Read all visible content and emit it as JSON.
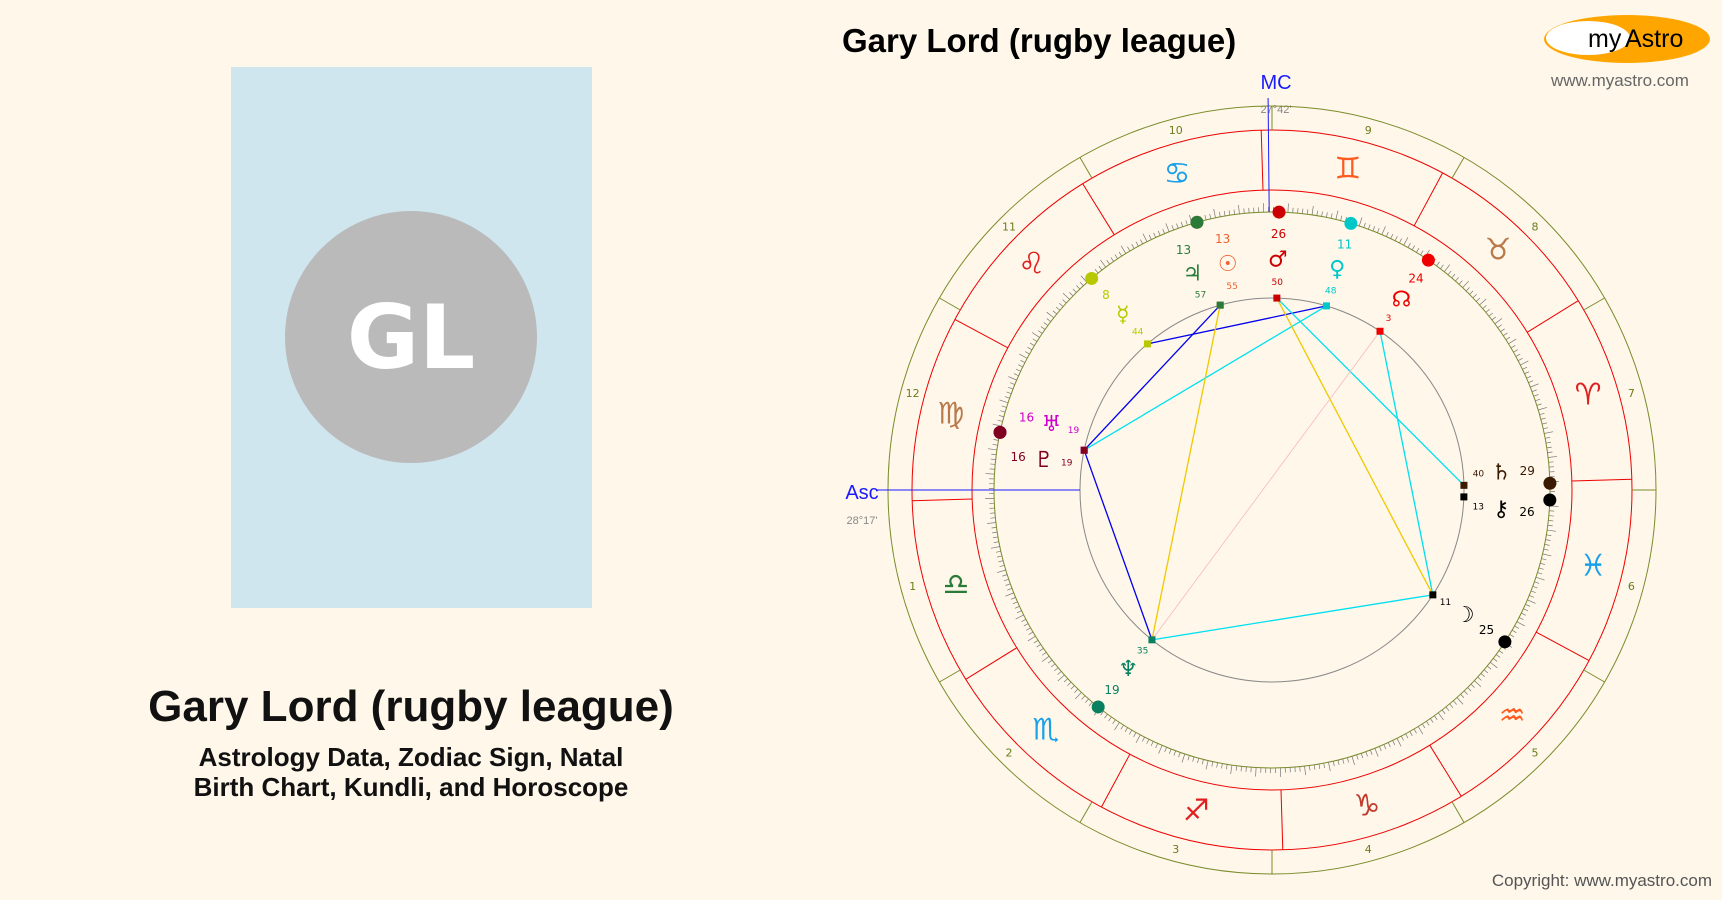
{
  "person": {
    "name": "Gary Lord (rugby league)",
    "initials": "GL",
    "subtitle_line1": "Astrology Data, Zodiac Sign, Natal",
    "subtitle_line2": "Birth Chart, Kundli, and Horoscope"
  },
  "header": {
    "title": "Gary Lord (rugby league)",
    "logo_my": "my",
    "logo_astro": "Astro",
    "url": "www.myastro.com"
  },
  "footer": {
    "copyright": "Copyright: www.myastro.com"
  },
  "chart": {
    "mc_label": "MC",
    "mc_degree": "27°42'",
    "asc_label": "Asc",
    "asc_degree": "28°17'",
    "asc_longitude": 178.28,
    "house_numbers": [
      "1",
      "2",
      "3",
      "4",
      "5",
      "6",
      "7",
      "8",
      "9",
      "10",
      "11",
      "12"
    ],
    "signs": [
      {
        "glyph": "♈",
        "color": "#e02020"
      },
      {
        "glyph": "♉",
        "color": "#b87a4b"
      },
      {
        "glyph": "♊",
        "color": "#ff5a1f"
      },
      {
        "glyph": "♋",
        "color": "#1aa0e8"
      },
      {
        "glyph": "♌",
        "color": "#e02020"
      },
      {
        "glyph": "♍",
        "color": "#b87a4b"
      },
      {
        "glyph": "♎",
        "color": "#2a7a3a"
      },
      {
        "glyph": "♏",
        "color": "#1aa0e8"
      },
      {
        "glyph": "♐",
        "color": "#e02020"
      },
      {
        "glyph": "♑",
        "color": "#c0392b"
      },
      {
        "glyph": "♒",
        "color": "#ff5a1f"
      },
      {
        "glyph": "♓",
        "color": "#1aa0e8"
      }
    ],
    "planets": [
      {
        "name": "mars",
        "glyph": "♂",
        "deg": "26",
        "min": "50",
        "lon": 86.83,
        "color": "#cc0000"
      },
      {
        "name": "venus",
        "glyph": "♀",
        "deg": "11",
        "min": "48",
        "lon": 71.8,
        "color": "#00c8c8"
      },
      {
        "name": "north-node",
        "glyph": "☊",
        "deg": "24",
        "min": "3",
        "lon": 54.05,
        "color": "#ee0000"
      },
      {
        "name": "sun",
        "glyph": "☉",
        "deg": "13",
        "min": "55",
        "lon": 103.92,
        "color": "#f06030"
      },
      {
        "name": "jupiter",
        "glyph": "♃",
        "deg": "13",
        "min": "57",
        "lon": 103.95,
        "color": "#2a7a3a"
      },
      {
        "name": "mercury",
        "glyph": "☿",
        "deg": "8",
        "min": "44",
        "lon": 128.73,
        "color": "#b8c800"
      },
      {
        "name": "uranus",
        "glyph": "♅",
        "deg": "16",
        "min": "19",
        "lon": 166.32,
        "color": "#cc00cc"
      },
      {
        "name": "pluto",
        "glyph": "♇",
        "deg": "16",
        "min": "19",
        "lon": 166.32,
        "color": "#800020"
      },
      {
        "name": "neptune",
        "glyph": "♆",
        "deg": "19",
        "min": "35",
        "lon": 229.58,
        "color": "#0a8060"
      },
      {
        "name": "moon",
        "glyph": "☽",
        "deg": "25",
        "min": "11",
        "lon": 325.18,
        "color": "#000000"
      },
      {
        "name": "saturn",
        "glyph": "♄",
        "deg": "29",
        "min": "40",
        "lon": 359.67,
        "color": "#3a1a00"
      },
      {
        "name": "chiron",
        "glyph": "⚷",
        "deg": "26",
        "min": "13",
        "lon": 356.22,
        "color": "#000000"
      }
    ],
    "aspects": [
      {
        "a": "mercury",
        "b": "venus",
        "type": "sextile",
        "color": "#0000ee"
      },
      {
        "a": "pluto",
        "b": "jupiter",
        "type": "sextile",
        "color": "#0000ee"
      },
      {
        "a": "pluto",
        "b": "neptune",
        "type": "sextile",
        "color": "#0000ee"
      },
      {
        "a": "pluto",
        "b": "venus",
        "type": "square",
        "color": "#00e0f0"
      },
      {
        "a": "jupiter",
        "b": "neptune",
        "type": "trine",
        "color": "#f0c800"
      },
      {
        "a": "mars",
        "b": "moon",
        "type": "trine",
        "color": "#f0c800"
      },
      {
        "a": "mars",
        "b": "saturn",
        "type": "square",
        "color": "#00e0f0"
      },
      {
        "a": "north-node",
        "b": "moon",
        "type": "square",
        "color": "#00e0f0"
      },
      {
        "a": "neptune",
        "b": "moon",
        "type": "square",
        "color": "#00e0f0"
      },
      {
        "a": "neptune",
        "b": "north-node",
        "type": "quincunx",
        "color": "#f8b8c0"
      }
    ]
  }
}
